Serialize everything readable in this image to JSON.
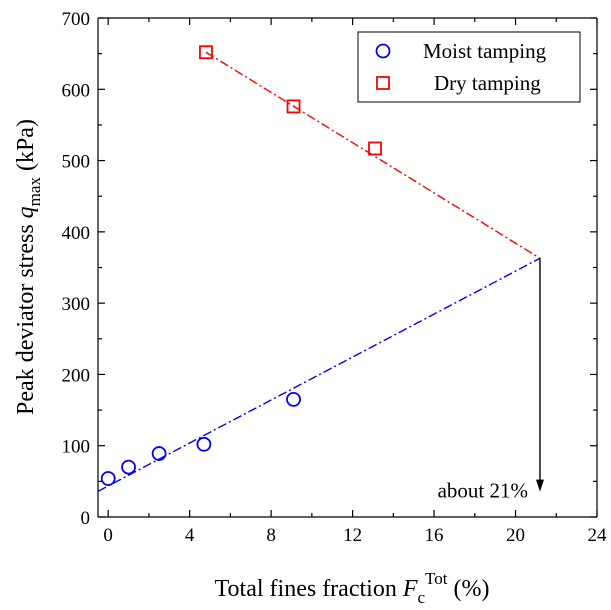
{
  "chart_data": {
    "type": "scatter",
    "xlabel": {
      "prefix": "Total fines fraction ",
      "var": "F",
      "sub": "c",
      "sup": "Tot",
      "suffix": " (%)"
    },
    "ylabel": {
      "prefix": "Peak deviator stress ",
      "var": "q",
      "sub": "max",
      "suffix": " (kPa)"
    },
    "xlim": [
      -0.5,
      24
    ],
    "ylim": [
      0,
      700
    ],
    "xticks": [
      0,
      4,
      8,
      12,
      16,
      20,
      24
    ],
    "yticks": [
      0,
      100,
      200,
      300,
      400,
      500,
      600,
      700
    ],
    "series": [
      {
        "name": "Moist tamping",
        "marker": "circle",
        "color": "#0000ff",
        "points": [
          {
            "x": 0.0,
            "y": 54
          },
          {
            "x": 1.0,
            "y": 70
          },
          {
            "x": 2.5,
            "y": 89
          },
          {
            "x": 4.7,
            "y": 102
          },
          {
            "x": 9.1,
            "y": 165
          }
        ],
        "trend": [
          {
            "x": -0.5,
            "y": 36
          },
          {
            "x": 21.2,
            "y": 363
          }
        ]
      },
      {
        "name": "Dry tamping",
        "marker": "square",
        "color": "#ff0000",
        "points": [
          {
            "x": 4.8,
            "y": 652
          },
          {
            "x": 9.1,
            "y": 576
          },
          {
            "x": 13.1,
            "y": 517
          }
        ],
        "trend": [
          {
            "x": 4.8,
            "y": 652
          },
          {
            "x": 21.2,
            "y": 363
          }
        ]
      }
    ],
    "annotation": {
      "text": "about 21%",
      "x": 21.2,
      "y_from": 363,
      "y_to": 30
    },
    "legend_position": "top-right",
    "grid": false
  }
}
